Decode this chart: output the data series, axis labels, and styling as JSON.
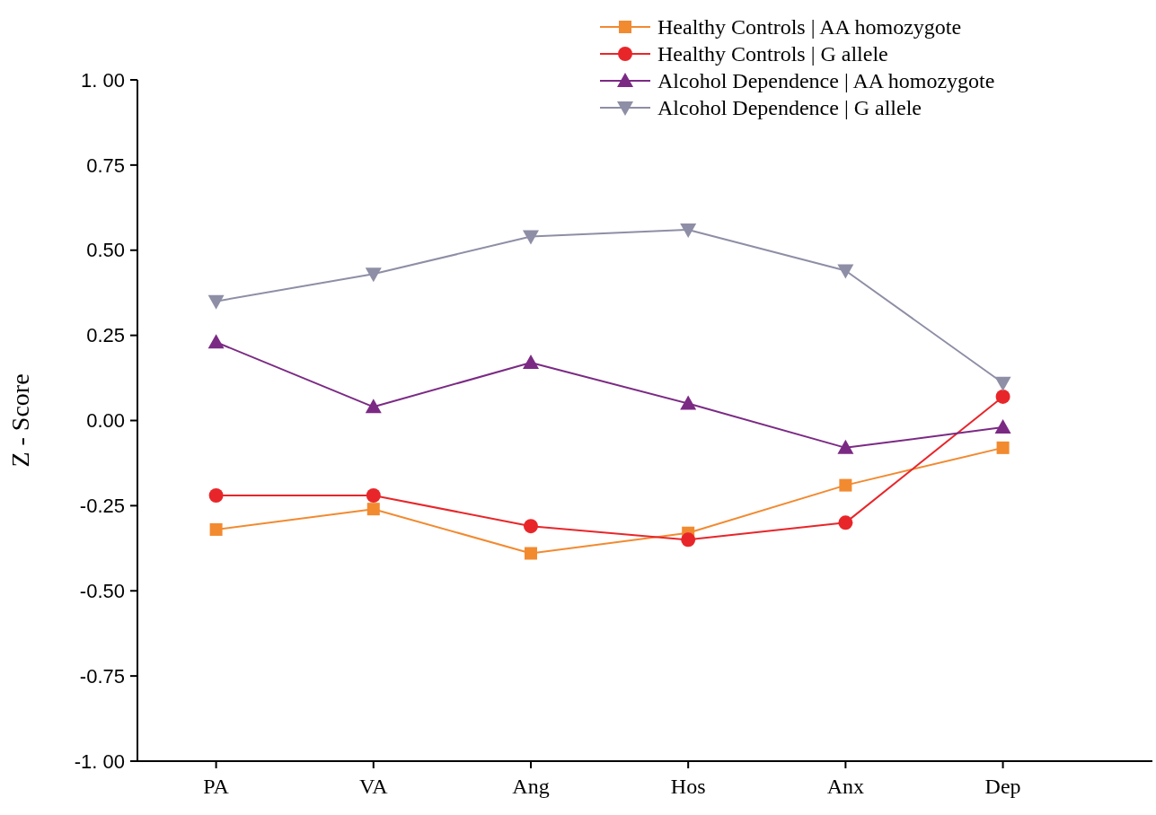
{
  "chart_data": {
    "type": "line",
    "ylabel": "Z - Score",
    "categories": [
      "PA",
      "VA",
      "Ang",
      "Hos",
      "Anx",
      "Dep"
    ],
    "ylim": [
      -1,
      1
    ],
    "yticks": [
      {
        "value": -1,
        "label": "-1. 00"
      },
      {
        "value": -0.75,
        "label": "-0.75"
      },
      {
        "value": -0.5,
        "label": "-0.50"
      },
      {
        "value": -0.25,
        "label": "-0.25"
      },
      {
        "value": 0,
        "label": "0.00"
      },
      {
        "value": 0.25,
        "label": "0.25"
      },
      {
        "value": 0.5,
        "label": "0.50"
      },
      {
        "value": 0.75,
        "label": "0.75"
      },
      {
        "value": 1,
        "label": "1. 00"
      }
    ],
    "grid": false,
    "legend": "top right",
    "line_style": "solid",
    "series": [
      {
        "name": "Healthy Controls | AA homozygote",
        "color": "#f28a30",
        "marker": "square",
        "values": [
          -0.32,
          -0.26,
          -0.39,
          -0.33,
          -0.19,
          -0.08
        ]
      },
      {
        "name": "Healthy Controls | G allele",
        "color": "#e8262a",
        "marker": "circle",
        "values": [
          -0.22,
          -0.22,
          -0.31,
          -0.35,
          -0.3,
          0.07
        ]
      },
      {
        "name": "Alcohol Dependence | AA homozygote",
        "color": "#7b2a84",
        "marker": "triangle",
        "values": [
          0.23,
          0.04,
          0.17,
          0.05,
          -0.08,
          -0.02
        ]
      },
      {
        "name": "Alcohol Dependence | G allele",
        "color": "#8e8ea6",
        "marker": "triangle-down",
        "values": [
          0.35,
          0.43,
          0.54,
          0.56,
          0.44,
          0.11
        ]
      }
    ]
  }
}
